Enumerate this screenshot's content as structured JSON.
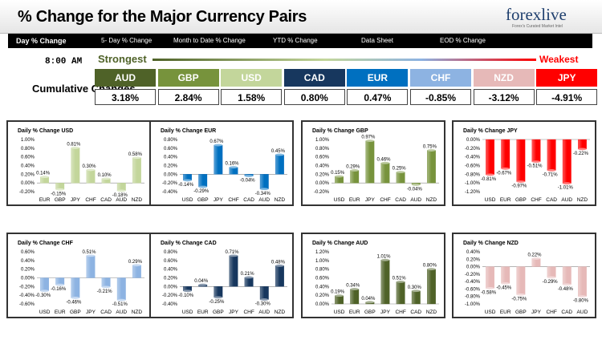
{
  "header": {
    "title": "% Change for the Major Currency Pairs",
    "logo_text": "forexlive",
    "logo_tagline": "Forex's Curated Market Intel"
  },
  "tabs": [
    {
      "label": "Day % Change",
      "active": true
    },
    {
      "label": "5- Day % Change",
      "active": false
    },
    {
      "label": "Month to Date % Change",
      "active": false
    },
    {
      "label": "YTD % Change",
      "active": false
    },
    {
      "label": "Data Sheet",
      "active": false
    },
    {
      "label": "EOD % Change",
      "active": false
    }
  ],
  "summary": {
    "time": "8:00 AM",
    "strongest_label": "Strongest",
    "weakest_label": "Weakest",
    "cumulative_label": "Cumulative Changes",
    "currencies": [
      {
        "code": "AUD",
        "value": "3.18%",
        "color": "#4f6228"
      },
      {
        "code": "GBP",
        "value": "2.84%",
        "color": "#77933c"
      },
      {
        "code": "USD",
        "value": "1.58%",
        "color": "#c3d69b"
      },
      {
        "code": "CAD",
        "value": "0.80%",
        "color": "#17375e"
      },
      {
        "code": "EUR",
        "value": "0.47%",
        "color": "#0070c0"
      },
      {
        "code": "CHF",
        "value": "-0.85%",
        "color": "#8db3e2"
      },
      {
        "code": "NZD",
        "value": "-3.12%",
        "color": "#e6b9b8"
      },
      {
        "code": "JPY",
        "value": "-4.91%",
        "color": "#ff0000"
      }
    ]
  },
  "chart_data": [
    {
      "type": "bar",
      "title": "Daily % Change USD",
      "color": "#c3d69b",
      "categories": [
        "EUR",
        "GBP",
        "JPY",
        "CHF",
        "CAD",
        "AUD",
        "NZD"
      ],
      "values": [
        0.14,
        -0.15,
        0.81,
        0.3,
        0.1,
        -0.18,
        0.58
      ],
      "labels": [
        "0.14%",
        "-0.15%",
        "0.81%",
        "0.30%",
        "0.10%",
        "-0.18%",
        "0.58%"
      ],
      "ylim": [
        -0.2,
        1.0
      ],
      "ticks": [
        "1.00%",
        "0.80%",
        "0.60%",
        "0.40%",
        "0.20%",
        "0.00%",
        "-0.20%"
      ]
    },
    {
      "type": "bar",
      "title": "Daily % Change EUR",
      "color": "#0070c0",
      "categories": [
        "USD",
        "GBP",
        "JPY",
        "CHF",
        "CAD",
        "AUD",
        "NZD"
      ],
      "values": [
        -0.14,
        -0.29,
        0.67,
        0.16,
        -0.04,
        -0.34,
        0.45
      ],
      "labels": [
        "-0.14%",
        "-0.29%",
        "0.67%",
        "0.16%",
        "-0.04%",
        "-0.34%",
        "0.45%"
      ],
      "ylim": [
        -0.4,
        0.8
      ],
      "ticks": [
        "0.80%",
        "0.60%",
        "0.40%",
        "0.20%",
        "0.00%",
        "-0.20%",
        "-0.40%"
      ]
    },
    {
      "type": "bar",
      "title": "Daily % Change GBP",
      "color": "#77933c",
      "categories": [
        "USD",
        "EUR",
        "JPY",
        "CHF",
        "CAD",
        "AUD",
        "NZD"
      ],
      "values": [
        0.15,
        0.29,
        0.97,
        0.46,
        0.25,
        -0.04,
        0.75
      ],
      "labels": [
        "0.15%",
        "0.29%",
        "0.97%",
        "0.46%",
        "0.25%",
        "-0.04%",
        "0.75%"
      ],
      "ylim": [
        -0.2,
        1.0
      ],
      "ticks": [
        "1.00%",
        "0.80%",
        "0.60%",
        "0.40%",
        "0.20%",
        "0.00%",
        "-0.20%"
      ]
    },
    {
      "type": "bar",
      "title": "Daily % Change JPY",
      "color": "#ff0000",
      "categories": [
        "USD",
        "EUR",
        "GBP",
        "CHF",
        "CAD",
        "AUD",
        "NZD"
      ],
      "values": [
        -0.81,
        -0.67,
        -0.97,
        -0.51,
        -0.71,
        -1.01,
        -0.22
      ],
      "labels": [
        "-0.81%",
        "-0.67%",
        "-0.97%",
        "-0.51%",
        "-0.71%",
        "-1.01%",
        "-0.22%"
      ],
      "ylim": [
        -1.2,
        0.0
      ],
      "ticks": [
        "0.00%",
        "-0.20%",
        "-0.40%",
        "-0.60%",
        "-0.80%",
        "-1.00%",
        "-1.20%"
      ]
    },
    {
      "type": "bar",
      "title": "Daily % Change CHF",
      "color": "#8db3e2",
      "categories": [
        "USD",
        "EUR",
        "GBP",
        "JPY",
        "CAD",
        "AUD",
        "NZD"
      ],
      "values": [
        -0.3,
        -0.16,
        -0.46,
        0.51,
        -0.21,
        -0.51,
        0.29
      ],
      "labels": [
        "-0.30%",
        "-0.16%",
        "-0.46%",
        "0.51%",
        "-0.21%",
        "-0.51%",
        "0.29%"
      ],
      "ylim": [
        -0.6,
        0.6
      ],
      "ticks": [
        "0.60%",
        "0.40%",
        "0.20%",
        "0.00%",
        "-0.20%",
        "-0.40%",
        "-0.60%"
      ]
    },
    {
      "type": "bar",
      "title": "Daily % Change CAD",
      "color": "#17375e",
      "categories": [
        "USD",
        "EUR",
        "GBP",
        "JPY",
        "CHF",
        "AUD",
        "NZD"
      ],
      "values": [
        -0.1,
        0.04,
        -0.25,
        0.71,
        0.21,
        -0.3,
        0.48
      ],
      "labels": [
        "-0.10%",
        "0.04%",
        "-0.25%",
        "0.71%",
        "0.21%",
        "-0.30%",
        "0.48%"
      ],
      "ylim": [
        -0.4,
        0.8
      ],
      "ticks": [
        "0.80%",
        "0.60%",
        "0.40%",
        "0.20%",
        "0.00%",
        "-0.20%",
        "-0.40%"
      ]
    },
    {
      "type": "bar",
      "title": "Daily % Change AUD",
      "color": "#4f6228",
      "categories": [
        "USD",
        "EUR",
        "GBP",
        "JPY",
        "CHF",
        "CAD",
        "NZD"
      ],
      "values": [
        0.19,
        0.34,
        0.04,
        1.01,
        0.51,
        0.3,
        0.8
      ],
      "labels": [
        "0.19%",
        "0.34%",
        "0.04%",
        "1.01%",
        "0.51%",
        "0.30%",
        "0.80%"
      ],
      "ylim": [
        0.0,
        1.2
      ],
      "ticks": [
        "1.20%",
        "1.00%",
        "0.80%",
        "0.60%",
        "0.40%",
        "0.20%",
        "0.00%"
      ]
    },
    {
      "type": "bar",
      "title": "Daily % Change NZD",
      "color": "#e6b9b8",
      "categories": [
        "USD",
        "EUR",
        "GBP",
        "JPY",
        "CHF",
        "CAD",
        "AUD"
      ],
      "values": [
        -0.58,
        -0.45,
        -0.75,
        0.22,
        -0.29,
        -0.48,
        -0.8
      ],
      "labels": [
        "-0.58%",
        "-0.45%",
        "-0.75%",
        "0.22%",
        "-0.29%",
        "-0.48%",
        "-0.80%"
      ],
      "ylim": [
        -1.0,
        0.4
      ],
      "ticks": [
        "0.40%",
        "0.20%",
        "0.00%",
        "-0.20%",
        "-0.40%",
        "-0.60%",
        "-0.80%",
        "-1.00%"
      ]
    }
  ]
}
